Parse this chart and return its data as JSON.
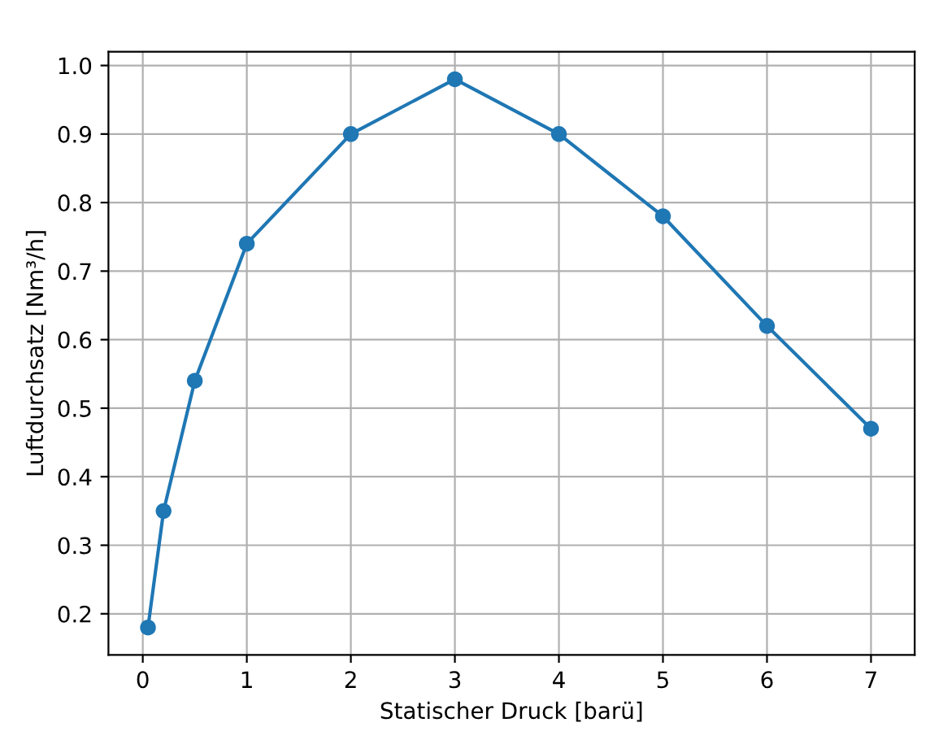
{
  "chart_data": {
    "type": "line",
    "xlabel": "Statischer Druck [barü]",
    "ylabel": "Luftdurchsatz [Nm³/h]",
    "x": [
      0.05,
      0.2,
      0.5,
      1,
      2,
      3,
      4,
      5,
      6,
      7
    ],
    "series": [
      {
        "color": "#1f77b4",
        "values": [
          0.18,
          0.35,
          0.54,
          0.74,
          0.9,
          0.98,
          0.9,
          0.78,
          0.62,
          0.47
        ]
      }
    ],
    "xlim": [
      -0.33,
      7.42
    ],
    "ylim": [
      0.14,
      1.02
    ],
    "xticks": [
      0,
      1,
      2,
      3,
      4,
      5,
      6,
      7
    ],
    "yticks": [
      {
        "value": 0.2,
        "label": "0.2"
      },
      {
        "value": 0.3,
        "label": "0.3"
      },
      {
        "value": 0.4,
        "label": "0.4"
      },
      {
        "value": 0.5,
        "label": "0.5"
      },
      {
        "value": 0.6,
        "label": "0.6"
      },
      {
        "value": 0.7,
        "label": "0.7"
      },
      {
        "value": 0.8,
        "label": "0.8"
      },
      {
        "value": 0.9,
        "label": "0.9"
      },
      {
        "value": 1.0,
        "label": "1.0"
      }
    ],
    "grid": true,
    "marker": "circle",
    "line_style": "solid"
  }
}
